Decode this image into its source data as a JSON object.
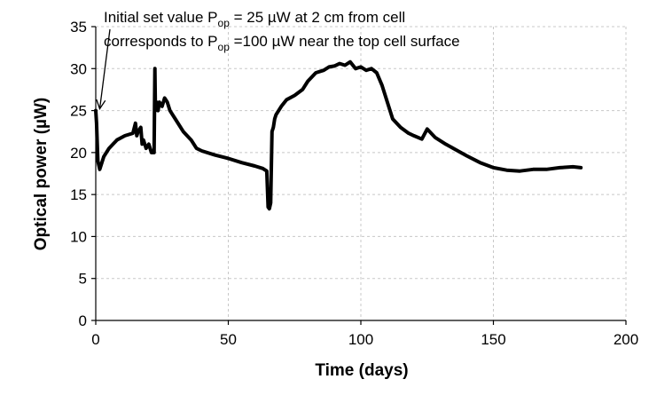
{
  "chart_data": {
    "type": "line",
    "xlabel": "Time (days)",
    "ylabel": "Optical power (µW)",
    "xlim": [
      0,
      200
    ],
    "ylim": [
      0,
      35
    ],
    "xticks": [
      0,
      50,
      100,
      150,
      200
    ],
    "yticks": [
      0,
      5,
      10,
      15,
      20,
      25,
      30,
      35
    ],
    "grid": "dashed vertical and horizontal",
    "annotation": {
      "line1_pre": "Initial set value P",
      "line1_sub": "op",
      "line1_post": " = 25 µW at 2 cm from cell",
      "line2_pre": "corresponds to P",
      "line2_sub": "op",
      "line2_post": " =100 µW near the top cell surface",
      "arrow_target": [
        0.5,
        25
      ]
    },
    "series": [
      {
        "x": [
          0,
          0.3,
          0.8,
          1.5,
          3,
          5,
          8,
          11,
          14,
          15,
          15.5,
          16,
          17,
          17.5,
          18,
          19,
          20,
          21,
          22,
          22.3,
          22.5,
          23,
          23.5,
          24,
          25,
          26,
          27,
          28,
          30,
          33,
          36,
          38,
          40,
          45,
          50,
          55,
          60,
          63,
          64.5,
          65,
          65.5,
          66,
          66.5,
          67,
          67.5,
          68,
          70,
          72,
          75,
          78,
          80,
          83,
          86,
          88,
          90,
          92,
          94,
          96,
          98,
          100,
          102,
          104,
          106,
          108,
          110,
          112,
          115,
          118,
          120,
          123,
          125,
          128,
          132,
          136,
          140,
          145,
          150,
          155,
          160,
          165,
          170,
          175,
          180,
          183
        ],
        "y": [
          25,
          23.5,
          19,
          18,
          19.5,
          20.5,
          21.5,
          22,
          22.3,
          23.5,
          22,
          22.5,
          23,
          21,
          21.5,
          20.5,
          21,
          20,
          20,
          30,
          25,
          26,
          25,
          26,
          25.5,
          26.5,
          26,
          25,
          24,
          22.5,
          21.5,
          20.5,
          20.2,
          19.7,
          19.3,
          18.8,
          18.4,
          18.1,
          17.8,
          13.5,
          13.3,
          14,
          22.5,
          23,
          24,
          24.5,
          25.5,
          26.3,
          26.8,
          27.5,
          28.5,
          29.5,
          29.8,
          30.2,
          30.3,
          30.6,
          30.4,
          30.8,
          30,
          30.2,
          29.8,
          30,
          29.5,
          28,
          26,
          24,
          23,
          22.3,
          22,
          21.6,
          22.8,
          21.8,
          21,
          20.3,
          19.6,
          18.8,
          18.2,
          17.9,
          17.8,
          18,
          18,
          18.2,
          18.3,
          18.2
        ]
      }
    ]
  }
}
